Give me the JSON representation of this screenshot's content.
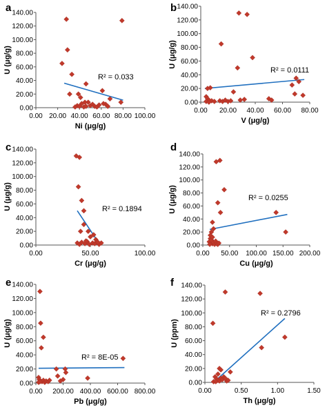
{
  "chart_data": [
    {
      "type": "scatter",
      "panel": "a",
      "xlabel": "Ni (μg/g)",
      "ylabel": "U (μg/g)",
      "xlim": [
        0,
        100
      ],
      "ylim": [
        0,
        140
      ],
      "xticks": [
        "0.00",
        "20.00",
        "40.00",
        "60.00",
        "80.00",
        "100.00"
      ],
      "yticks": [
        "0.00",
        "20.00",
        "40.00",
        "60.00",
        "80.00",
        "100.00",
        "120.00",
        "140.00"
      ],
      "points": [
        [
          28,
          130
        ],
        [
          29,
          85
        ],
        [
          24,
          65
        ],
        [
          33,
          49
        ],
        [
          31,
          20
        ],
        [
          39,
          20
        ],
        [
          46,
          35
        ],
        [
          41,
          15
        ],
        [
          61,
          25
        ],
        [
          64,
          5
        ],
        [
          68,
          13
        ],
        [
          79,
          128
        ],
        [
          78,
          8
        ],
        [
          38,
          3
        ],
        [
          40,
          2
        ],
        [
          42,
          6
        ],
        [
          44,
          1
        ],
        [
          46,
          2
        ],
        [
          48,
          8
        ],
        [
          50,
          3
        ],
        [
          52,
          5
        ],
        [
          54,
          2
        ],
        [
          56,
          1
        ],
        [
          58,
          4
        ],
        [
          62,
          6
        ],
        [
          66,
          2
        ],
        [
          45,
          8
        ],
        [
          36,
          1
        ]
      ],
      "trendline": {
        "x": [
          26,
          80
        ],
        "y": [
          36,
          11
        ]
      },
      "annotation": "R² = 0.033",
      "grid": false,
      "marker_color": "#c0392b",
      "line_color": "#1f6fbf"
    },
    {
      "type": "scatter",
      "panel": "b",
      "xlabel": "V (μg/g)",
      "ylabel": "U (μg/g)",
      "xlim": [
        0,
        80
      ],
      "ylim": [
        0,
        140
      ],
      "xticks": [
        "0.00",
        "20.00",
        "40.00",
        "60.00",
        "80.00"
      ],
      "yticks": [
        "0.00",
        "20.00",
        "40.00",
        "60.00",
        "80.00",
        "100.00",
        "120.00",
        "140.00"
      ],
      "points": [
        [
          28,
          130
        ],
        [
          34,
          128
        ],
        [
          15,
          85
        ],
        [
          38,
          65
        ],
        [
          27,
          50
        ],
        [
          7,
          21
        ],
        [
          5,
          20
        ],
        [
          24,
          15
        ],
        [
          4,
          8
        ],
        [
          5,
          5
        ],
        [
          6,
          3
        ],
        [
          8,
          2
        ],
        [
          10,
          1
        ],
        [
          14,
          2
        ],
        [
          16,
          1
        ],
        [
          18,
          3
        ],
        [
          20,
          1
        ],
        [
          22,
          2
        ],
        [
          29,
          3
        ],
        [
          32,
          4
        ],
        [
          50,
          5
        ],
        [
          52,
          3
        ],
        [
          67,
          25
        ],
        [
          70,
          35
        ],
        [
          72,
          30
        ],
        [
          69,
          12
        ],
        [
          75,
          10
        ],
        [
          4,
          1
        ],
        [
          6,
          0
        ]
      ],
      "trendline": {
        "x": [
          3,
          76
        ],
        "y": [
          20,
          33
        ]
      },
      "annotation": "R² = 0.0111",
      "grid": false,
      "marker_color": "#c0392b",
      "line_color": "#1f6fbf"
    },
    {
      "type": "scatter",
      "panel": "c",
      "xlabel": "Cr (μg/g)",
      "ylabel": "U (μg/g)",
      "xlim": [
        0,
        100
      ],
      "ylim": [
        0,
        140
      ],
      "xticks": [
        "0.00",
        "50.00",
        "100.00"
      ],
      "yticks": [
        "0.00",
        "20.00",
        "40.00",
        "60.00",
        "80.00",
        "100.00",
        "120.00",
        "140.00"
      ],
      "points": [
        [
          37,
          130
        ],
        [
          40,
          128
        ],
        [
          39,
          85
        ],
        [
          42,
          65
        ],
        [
          44,
          50
        ],
        [
          41,
          20
        ],
        [
          44,
          30
        ],
        [
          48,
          20
        ],
        [
          53,
          15
        ],
        [
          55,
          8
        ],
        [
          50,
          12
        ],
        [
          38,
          3
        ],
        [
          40,
          1
        ],
        [
          42,
          4
        ],
        [
          45,
          2
        ],
        [
          47,
          5
        ],
        [
          49,
          1
        ],
        [
          52,
          3
        ],
        [
          54,
          2
        ],
        [
          56,
          5
        ],
        [
          58,
          1
        ],
        [
          60,
          3
        ],
        [
          57,
          4
        ],
        [
          46,
          6
        ]
      ],
      "trendline": {
        "x": [
          38,
          59
        ],
        "y": [
          50,
          0
        ]
      },
      "annotation": "R² = 0.1894",
      "grid": false,
      "marker_color": "#c0392b",
      "line_color": "#1f6fbf"
    },
    {
      "type": "scatter",
      "panel": "d",
      "xlabel": "Cu (μg/g)",
      "ylabel": "U (μg/g)",
      "xlim": [
        0,
        200
      ],
      "ylim": [
        0,
        140
      ],
      "xticks": [
        "0.00",
        "50.00",
        "100.00",
        "150.00",
        "200.00"
      ],
      "yticks": [
        "0.00",
        "20.00",
        "40.00",
        "60.00",
        "80.00",
        "100.00",
        "120.00",
        "140.00"
      ],
      "points": [
        [
          25,
          128
        ],
        [
          32,
          130
        ],
        [
          40,
          85
        ],
        [
          28,
          65
        ],
        [
          33,
          50
        ],
        [
          18,
          35
        ],
        [
          20,
          25
        ],
        [
          16,
          20
        ],
        [
          14,
          10
        ],
        [
          12,
          5
        ],
        [
          15,
          3
        ],
        [
          18,
          2
        ],
        [
          20,
          4
        ],
        [
          22,
          1
        ],
        [
          24,
          6
        ],
        [
          26,
          2
        ],
        [
          14,
          15
        ],
        [
          16,
          8
        ],
        [
          28,
          1
        ],
        [
          30,
          3
        ],
        [
          18,
          12
        ],
        [
          137,
          50
        ],
        [
          155,
          20
        ],
        [
          13,
          1
        ]
      ],
      "trendline": {
        "x": [
          13,
          158
        ],
        "y": [
          24,
          47
        ]
      },
      "annotation": "R² = 0.0255",
      "grid": false,
      "marker_color": "#c0392b",
      "line_color": "#1f6fbf"
    },
    {
      "type": "scatter",
      "panel": "e",
      "xlabel": "Pb (μg/g)",
      "ylabel": "U (μg/g)",
      "xlim": [
        0,
        800
      ],
      "ylim": [
        0,
        140
      ],
      "xticks": [
        "0.00",
        "200.00",
        "400.00",
        "600.00",
        "800.00"
      ],
      "yticks": [
        "0.00",
        "20.00",
        "40.00",
        "60.00",
        "80.00",
        "100.00",
        "120.00",
        "140.00"
      ],
      "points": [
        [
          30,
          130
        ],
        [
          35,
          85
        ],
        [
          55,
          65
        ],
        [
          40,
          50
        ],
        [
          20,
          8
        ],
        [
          25,
          5
        ],
        [
          35,
          3
        ],
        [
          45,
          2
        ],
        [
          55,
          4
        ],
        [
          65,
          1
        ],
        [
          75,
          3
        ],
        [
          90,
          2
        ],
        [
          100,
          4
        ],
        [
          150,
          20
        ],
        [
          160,
          10
        ],
        [
          215,
          20
        ],
        [
          220,
          15
        ],
        [
          200,
          5
        ],
        [
          180,
          3
        ],
        [
          380,
          7
        ],
        [
          640,
          35
        ],
        [
          20,
          1
        ],
        [
          30,
          2
        ]
      ],
      "trendline": {
        "x": [
          20,
          650
        ],
        "y": [
          21,
          22
        ]
      },
      "annotation": "R² = 8E-05",
      "grid": false,
      "marker_color": "#c0392b",
      "line_color": "#1f6fbf"
    },
    {
      "type": "scatter",
      "panel": "f",
      "xlabel": "Th (μg/g)",
      "ylabel": "U (ppm)",
      "xlim": [
        0,
        1.5
      ],
      "ylim": [
        0,
        140
      ],
      "xticks": [
        "0.00",
        "0.50",
        "1.00",
        "1.50"
      ],
      "yticks": [
        "0.00",
        "20.00",
        "40.00",
        "60.00",
        "80.00",
        "100.00",
        "120.00",
        "140.00"
      ],
      "points": [
        [
          0.28,
          130
        ],
        [
          0.76,
          128
        ],
        [
          0.11,
          85
        ],
        [
          1.1,
          65
        ],
        [
          0.78,
          50
        ],
        [
          0.2,
          20
        ],
        [
          0.22,
          18
        ],
        [
          0.14,
          8
        ],
        [
          0.16,
          5
        ],
        [
          0.18,
          3
        ],
        [
          0.2,
          2
        ],
        [
          0.22,
          6
        ],
        [
          0.24,
          4
        ],
        [
          0.26,
          8
        ],
        [
          0.3,
          2
        ],
        [
          0.35,
          15
        ],
        [
          0.12,
          1
        ],
        [
          0.15,
          1
        ],
        [
          0.28,
          6
        ],
        [
          0.32,
          3
        ],
        [
          0.18,
          12
        ]
      ],
      "trendline": {
        "x": [
          0.12,
          1.1
        ],
        "y": [
          0,
          92
        ]
      },
      "annotation": "R² = 0.2796",
      "grid": false,
      "marker_color": "#c0392b",
      "line_color": "#1f6fbf"
    }
  ]
}
